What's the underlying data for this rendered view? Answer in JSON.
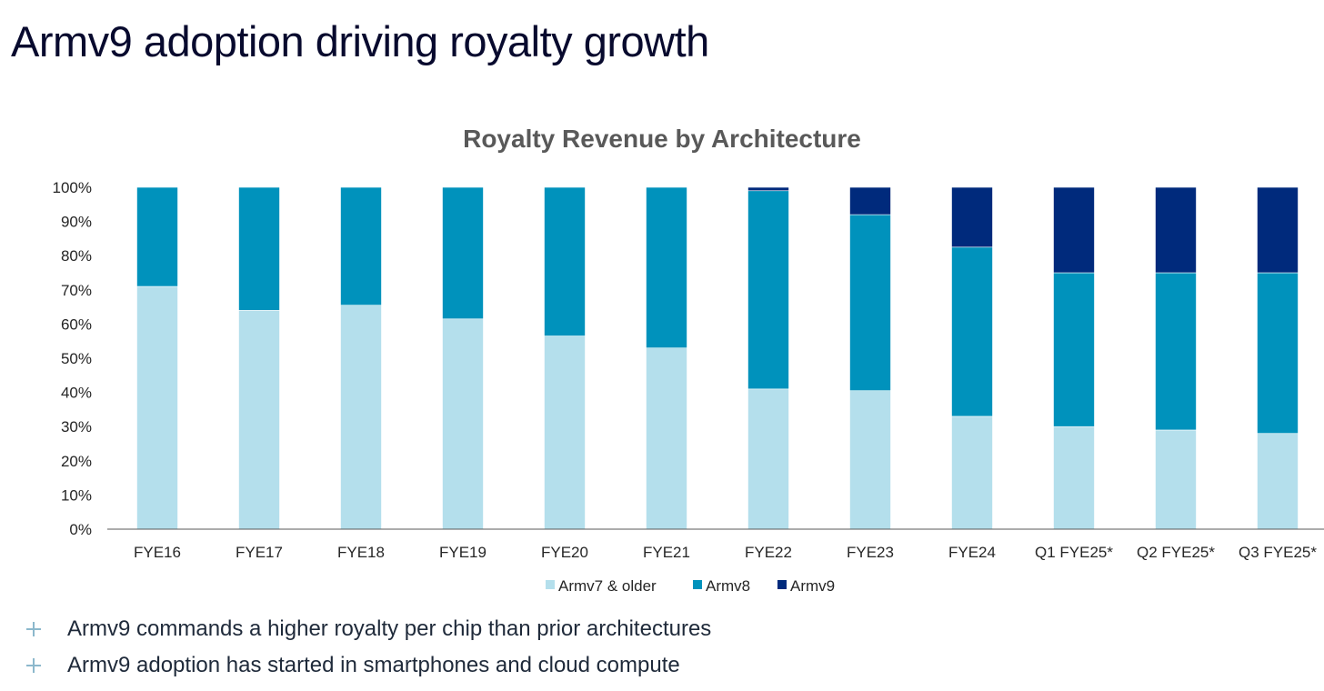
{
  "slide": {
    "title": "Armv9 adoption driving royalty growth",
    "bullets": [
      "Armv9 commands a higher royalty per chip than prior architectures",
      "Armv9 adoption has started in smartphones and cloud compute"
    ],
    "bullet_icon": "plus-icon"
  },
  "chart_data": {
    "type": "bar",
    "stacked": true,
    "title": "Royalty Revenue by Architecture",
    "xlabel": "",
    "ylabel": "",
    "ylim": [
      0,
      100
    ],
    "y_ticks": [
      "0%",
      "10%",
      "20%",
      "30%",
      "40%",
      "50%",
      "60%",
      "70%",
      "80%",
      "90%",
      "100%"
    ],
    "grid": false,
    "legend_position": "bottom",
    "categories": [
      "FYE16",
      "FYE17",
      "FYE18",
      "FYE19",
      "FYE20",
      "FYE21",
      "FYE22",
      "FYE23",
      "FYE24",
      "Q1 FYE25*",
      "Q2 FYE25*",
      "Q3 FYE25*"
    ],
    "series": [
      {
        "name": "Armv7 & older",
        "color": "#b4dfec",
        "values": [
          71,
          64,
          65.5,
          61.5,
          56.5,
          53,
          41,
          40.5,
          33,
          30,
          29,
          28
        ]
      },
      {
        "name": "Armv8",
        "color": "#0092bc",
        "values": [
          29,
          36,
          34.5,
          38.5,
          43.5,
          47,
          58,
          51.5,
          49.5,
          45,
          46,
          47
        ]
      },
      {
        "name": "Armv9",
        "color": "#002a7c",
        "values": [
          0,
          0,
          0,
          0,
          0,
          0,
          1,
          8,
          17.5,
          25,
          25,
          25
        ]
      }
    ]
  }
}
